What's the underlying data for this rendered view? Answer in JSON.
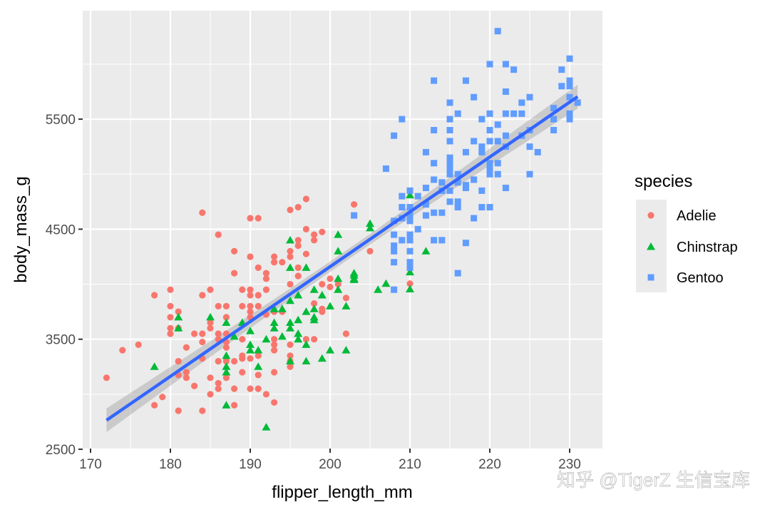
{
  "chart_data": {
    "type": "scatter",
    "xlabel": "flipper_length_mm",
    "ylabel": "body_mass_g",
    "xlim": [
      169,
      234
    ],
    "ylim": [
      2500,
      6480
    ],
    "x_ticks": [
      170,
      180,
      190,
      200,
      210,
      220,
      230
    ],
    "y_ticks": [
      2500,
      3500,
      4500,
      5500
    ],
    "grid": true,
    "legend": {
      "title": "species",
      "position": "right"
    },
    "series": [
      {
        "name": "Adelie",
        "color": "#F8766D",
        "shape": "circle",
        "points": [
          [
            184,
            4650
          ],
          [
            190,
            4600
          ],
          [
            191,
            4600
          ],
          [
            195,
            4675
          ],
          [
            196,
            4700
          ],
          [
            197,
            4775
          ],
          [
            186,
            4450
          ],
          [
            197,
            4500
          ],
          [
            198,
            4450
          ],
          [
            198,
            4400
          ],
          [
            199,
            4475
          ],
          [
            196,
            4400
          ],
          [
            196,
            4350
          ],
          [
            195,
            4300
          ],
          [
            195,
            4250
          ],
          [
            197,
            4275
          ],
          [
            188,
            4300
          ],
          [
            190,
            4250
          ],
          [
            193,
            4250
          ],
          [
            193,
            4200
          ],
          [
            194,
            4200
          ],
          [
            191,
            4150
          ],
          [
            192,
            4100
          ],
          [
            192,
            4050
          ],
          [
            188,
            4100
          ],
          [
            196,
            4150
          ],
          [
            196,
            4075
          ],
          [
            195,
            4000
          ],
          [
            199,
            4000
          ],
          [
            200,
            4050
          ],
          [
            200,
            3975
          ],
          [
            201,
            4000
          ],
          [
            202,
            3875
          ],
          [
            202,
            3550
          ],
          [
            178,
            3900
          ],
          [
            180,
            3950
          ],
          [
            184,
            3900
          ],
          [
            185,
            3950
          ],
          [
            189,
            3950
          ],
          [
            190,
            3950
          ],
          [
            190,
            3900
          ],
          [
            191,
            3900
          ],
          [
            192,
            3950
          ],
          [
            180,
            3800
          ],
          [
            181,
            3750
          ],
          [
            180,
            3700
          ],
          [
            180,
            3600
          ],
          [
            180,
            3550
          ],
          [
            181,
            3600
          ],
          [
            186,
            3800
          ],
          [
            187,
            3800
          ],
          [
            189,
            3800
          ],
          [
            190,
            3800
          ],
          [
            191,
            3800
          ],
          [
            187,
            3700
          ],
          [
            190,
            3750
          ],
          [
            190,
            3700
          ],
          [
            192,
            3725
          ],
          [
            193,
            3750
          ],
          [
            194,
            3750
          ],
          [
            198,
            3825
          ],
          [
            199,
            3775
          ],
          [
            199,
            3750
          ],
          [
            185,
            3650
          ],
          [
            185,
            3600
          ],
          [
            183,
            3550
          ],
          [
            184,
            3550
          ],
          [
            186,
            3550
          ],
          [
            187,
            3550
          ],
          [
            186,
            3500
          ],
          [
            187,
            3475
          ],
          [
            187,
            3425
          ],
          [
            184,
            3475
          ],
          [
            189,
            3500
          ],
          [
            193,
            3500
          ],
          [
            193,
            3450
          ],
          [
            193,
            3400
          ],
          [
            197,
            3500
          ],
          [
            198,
            3500
          ],
          [
            195,
            3450
          ],
          [
            195,
            3350
          ],
          [
            195,
            3300
          ],
          [
            195,
            3250
          ],
          [
            176,
            3450
          ],
          [
            174,
            3400
          ],
          [
            182,
            3425
          ],
          [
            184,
            3325
          ],
          [
            181,
            3300
          ],
          [
            181,
            3175
          ],
          [
            182,
            3200
          ],
          [
            182,
            3150
          ],
          [
            186,
            3300
          ],
          [
            187,
            3300
          ],
          [
            188,
            3300
          ],
          [
            189,
            3350
          ],
          [
            189,
            3325
          ],
          [
            190,
            3325
          ],
          [
            191,
            3350
          ],
          [
            187,
            3150
          ],
          [
            189,
            3200
          ],
          [
            191,
            3175
          ],
          [
            193,
            3200
          ],
          [
            185,
            3150
          ],
          [
            183,
            3075
          ],
          [
            186,
            3100
          ],
          [
            186,
            3050
          ],
          [
            188,
            3050
          ],
          [
            190,
            3050
          ],
          [
            191,
            3050
          ],
          [
            185,
            3000
          ],
          [
            192,
            3000
          ],
          [
            193,
            2925
          ],
          [
            179,
            2975
          ],
          [
            178,
            2900
          ],
          [
            181,
            2850
          ],
          [
            184,
            2850
          ],
          [
            188,
            2900
          ],
          [
            172,
            3150
          ],
          [
            205,
            4300
          ],
          [
            203,
            4725
          ],
          [
            210,
            4005
          ]
        ]
      },
      {
        "name": "Chinstrap",
        "color": "#00BA38",
        "shape": "triangle",
        "points": [
          [
            195,
            4400
          ],
          [
            201,
            4450
          ],
          [
            201,
            4300
          ],
          [
            195,
            4150
          ],
          [
            197,
            4150
          ],
          [
            203,
            4100
          ],
          [
            203,
            4050
          ],
          [
            201,
            4050
          ],
          [
            201,
            3950
          ],
          [
            198,
            3950
          ],
          [
            199,
            3900
          ],
          [
            196,
            3900
          ],
          [
            195,
            3850
          ],
          [
            193,
            3775
          ],
          [
            194,
            3775
          ],
          [
            197,
            3750
          ],
          [
            198,
            3775
          ],
          [
            198,
            3700
          ],
          [
            198,
            3675
          ],
          [
            200,
            3800
          ],
          [
            202,
            3800
          ],
          [
            196,
            3675
          ],
          [
            193,
            3650
          ],
          [
            193,
            3600
          ],
          [
            195,
            3650
          ],
          [
            195,
            3600
          ],
          [
            189,
            3650
          ],
          [
            190,
            3575
          ],
          [
            181,
            3700
          ],
          [
            181,
            3600
          ],
          [
            185,
            3700
          ],
          [
            187,
            3650
          ],
          [
            188,
            3525
          ],
          [
            192,
            3500
          ],
          [
            194,
            3525
          ],
          [
            196,
            3550
          ],
          [
            196,
            3500
          ],
          [
            197,
            3450
          ],
          [
            190,
            3450
          ],
          [
            190,
            3400
          ],
          [
            191,
            3400
          ],
          [
            200,
            3400
          ],
          [
            202,
            3400
          ],
          [
            199,
            3325
          ],
          [
            197,
            3300
          ],
          [
            195,
            3300
          ],
          [
            187,
            3350
          ],
          [
            187,
            3250
          ],
          [
            187,
            3200
          ],
          [
            191,
            3250
          ],
          [
            178,
            3250
          ],
          [
            187,
            2900
          ],
          [
            192,
            2700
          ],
          [
            210,
            4810
          ],
          [
            205,
            4550
          ],
          [
            205,
            4510
          ],
          [
            212,
            4300
          ],
          [
            203,
            4080
          ],
          [
            203,
            4040
          ],
          [
            207,
            4005
          ],
          [
            206,
            3950
          ],
          [
            210,
            4110
          ],
          [
            210,
            3955
          ]
        ]
      },
      {
        "name": "Gentoo",
        "color": "#619CFF",
        "shape": "square",
        "points": [
          [
            221,
            6300
          ],
          [
            220,
            6000
          ],
          [
            222,
            6000
          ],
          [
            223,
            5950
          ],
          [
            230,
            6050
          ],
          [
            229,
            5950
          ],
          [
            229,
            5800
          ],
          [
            230,
            5850
          ],
          [
            230,
            5800
          ],
          [
            213,
            5850
          ],
          [
            217,
            5850
          ],
          [
            222,
            5750
          ],
          [
            218,
            5700
          ],
          [
            225,
            5700
          ],
          [
            224,
            5650
          ],
          [
            230,
            5700
          ],
          [
            231,
            5650
          ],
          [
            215,
            5650
          ],
          [
            216,
            5550
          ],
          [
            220,
            5550
          ],
          [
            222,
            5550
          ],
          [
            223,
            5550
          ],
          [
            224,
            5550
          ],
          [
            230,
            5550
          ],
          [
            230,
            5500
          ],
          [
            228,
            5600
          ],
          [
            228,
            5500
          ],
          [
            228,
            5400
          ],
          [
            215,
            5500
          ],
          [
            219,
            5500
          ],
          [
            209,
            5500
          ],
          [
            221,
            5450
          ],
          [
            213,
            5400
          ],
          [
            215,
            5400
          ],
          [
            220,
            5400
          ],
          [
            222,
            5350
          ],
          [
            225,
            5400
          ],
          [
            224,
            5350
          ],
          [
            208,
            5350
          ],
          [
            215,
            5300
          ],
          [
            218,
            5300
          ],
          [
            220,
            5300
          ],
          [
            221,
            5300
          ],
          [
            219,
            5250
          ],
          [
            219,
            5200
          ],
          [
            222,
            5250
          ],
          [
            225,
            5250
          ],
          [
            226,
            5200
          ],
          [
            212,
            5200
          ],
          [
            217,
            5200
          ],
          [
            213,
            5100
          ],
          [
            207,
            5050
          ],
          [
            215,
            5150
          ],
          [
            215,
            5100
          ],
          [
            215,
            5050
          ],
          [
            215,
            5000
          ],
          [
            220,
            5100
          ],
          [
            220,
            5050
          ],
          [
            220,
            5000
          ],
          [
            221,
            5100
          ],
          [
            221,
            5000
          ],
          [
            225,
            5000
          ],
          [
            216,
            5000
          ],
          [
            216,
            4925
          ],
          [
            213,
            4950
          ],
          [
            214,
            4925
          ],
          [
            214,
            4850
          ],
          [
            215,
            4850
          ],
          [
            218,
            4950
          ],
          [
            217,
            4900
          ],
          [
            217,
            4875
          ],
          [
            219,
            4850
          ],
          [
            222,
            4875
          ],
          [
            212,
            4875
          ],
          [
            212,
            4725
          ],
          [
            211,
            4800
          ],
          [
            209,
            4800
          ],
          [
            209,
            4700
          ],
          [
            210,
            4850
          ],
          [
            210,
            4700
          ],
          [
            210,
            4625
          ],
          [
            210,
            4575
          ],
          [
            208,
            4575
          ],
          [
            209,
            4600
          ],
          [
            212,
            4625
          ],
          [
            213,
            4650
          ],
          [
            214,
            4650
          ],
          [
            215,
            4750
          ],
          [
            216,
            4750
          ],
          [
            216,
            4700
          ],
          [
            219,
            4700
          ],
          [
            220,
            4700
          ],
          [
            218,
            4600
          ],
          [
            203,
            4625
          ],
          [
            211,
            4500
          ],
          [
            208,
            4450
          ],
          [
            209,
            4400
          ],
          [
            210,
            4450
          ],
          [
            210,
            4400
          ],
          [
            208,
            4350
          ],
          [
            208,
            4300
          ],
          [
            210,
            4300
          ],
          [
            213,
            4400
          ],
          [
            214,
            4400
          ],
          [
            217,
            4375
          ],
          [
            208,
            4200
          ],
          [
            210,
            4200
          ],
          [
            210,
            4150
          ],
          [
            216,
            4100
          ],
          [
            208,
            3950
          ]
        ]
      }
    ],
    "fit": {
      "method": "lm",
      "color": "#3366FF",
      "se": true
    }
  },
  "watermark": "知乎 @TigerZ 生信宝库"
}
